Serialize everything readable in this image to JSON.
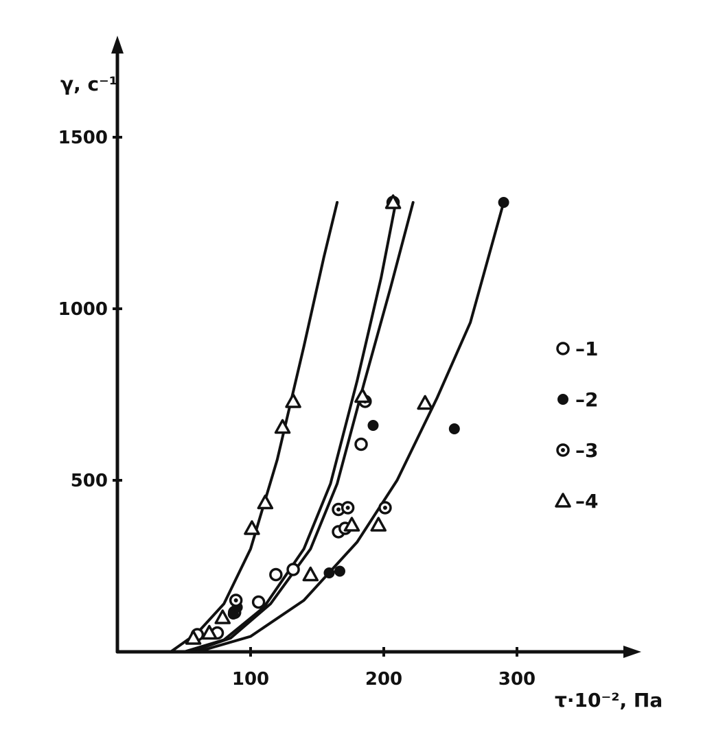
{
  "chart_data": {
    "type": "scatter",
    "title": "",
    "xlabel": "τ·10⁻², Па",
    "ylabel": "γ, с⁻¹",
    "xlim": [
      0,
      400
    ],
    "ylim": [
      0,
      1500
    ],
    "xticks": [
      {
        "value": 100,
        "label": "100"
      },
      {
        "value": 200,
        "label": "200"
      },
      {
        "value": 300,
        "label": "300"
      }
    ],
    "yticks": [
      {
        "value": 500,
        "label": "500"
      },
      {
        "value": 1000,
        "label": "1000"
      },
      {
        "value": 1500,
        "label": "1500"
      }
    ],
    "grid": false,
    "legend_position": "right",
    "series": [
      {
        "name": "1",
        "marker": "open-circle",
        "points": [
          [
            60,
            50
          ],
          [
            75,
            55
          ],
          [
            88,
            115
          ],
          [
            106,
            145
          ],
          [
            119,
            225
          ],
          [
            132,
            240
          ],
          [
            166,
            350
          ],
          [
            171,
            360
          ],
          [
            183,
            605
          ],
          [
            207,
            1310
          ]
        ]
      },
      {
        "name": "2",
        "marker": "filled-circle",
        "points": [
          [
            87,
            110
          ],
          [
            90,
            130
          ],
          [
            159,
            230
          ],
          [
            167,
            235
          ],
          [
            192,
            660
          ],
          [
            253,
            650
          ],
          [
            290,
            1310
          ]
        ]
      },
      {
        "name": "3",
        "marker": "dotted-circle",
        "points": [
          [
            89,
            150
          ],
          [
            166,
            415
          ],
          [
            173,
            420
          ],
          [
            186,
            730
          ],
          [
            201,
            420
          ]
        ]
      },
      {
        "name": "4",
        "marker": "open-triangle",
        "points": [
          [
            57,
            40
          ],
          [
            69,
            55
          ],
          [
            79,
            100
          ],
          [
            101,
            360
          ],
          [
            111,
            435
          ],
          [
            124,
            655
          ],
          [
            132,
            730
          ],
          [
            145,
            225
          ],
          [
            176,
            370
          ],
          [
            184,
            745
          ],
          [
            196,
            370
          ],
          [
            207,
            1310
          ],
          [
            231,
            725
          ]
        ]
      }
    ],
    "curves": [
      {
        "points": [
          [
            40,
            0
          ],
          [
            60,
            55
          ],
          [
            80,
            140
          ],
          [
            100,
            300
          ],
          [
            120,
            560
          ],
          [
            140,
            890
          ],
          [
            155,
            1150
          ],
          [
            165,
            1310
          ]
        ]
      },
      {
        "points": [
          [
            50,
            0
          ],
          [
            80,
            35
          ],
          [
            110,
            130
          ],
          [
            140,
            300
          ],
          [
            160,
            490
          ],
          [
            180,
            790
          ],
          [
            198,
            1090
          ],
          [
            209,
            1310
          ]
        ]
      },
      {
        "points": [
          [
            55,
            0
          ],
          [
            85,
            40
          ],
          [
            115,
            140
          ],
          [
            145,
            300
          ],
          [
            165,
            490
          ],
          [
            185,
            780
          ],
          [
            205,
            1060
          ],
          [
            222,
            1310
          ]
        ]
      },
      {
        "points": [
          [
            60,
            0
          ],
          [
            100,
            45
          ],
          [
            140,
            150
          ],
          [
            180,
            320
          ],
          [
            210,
            500
          ],
          [
            240,
            740
          ],
          [
            265,
            960
          ],
          [
            290,
            1310
          ]
        ]
      }
    ]
  }
}
